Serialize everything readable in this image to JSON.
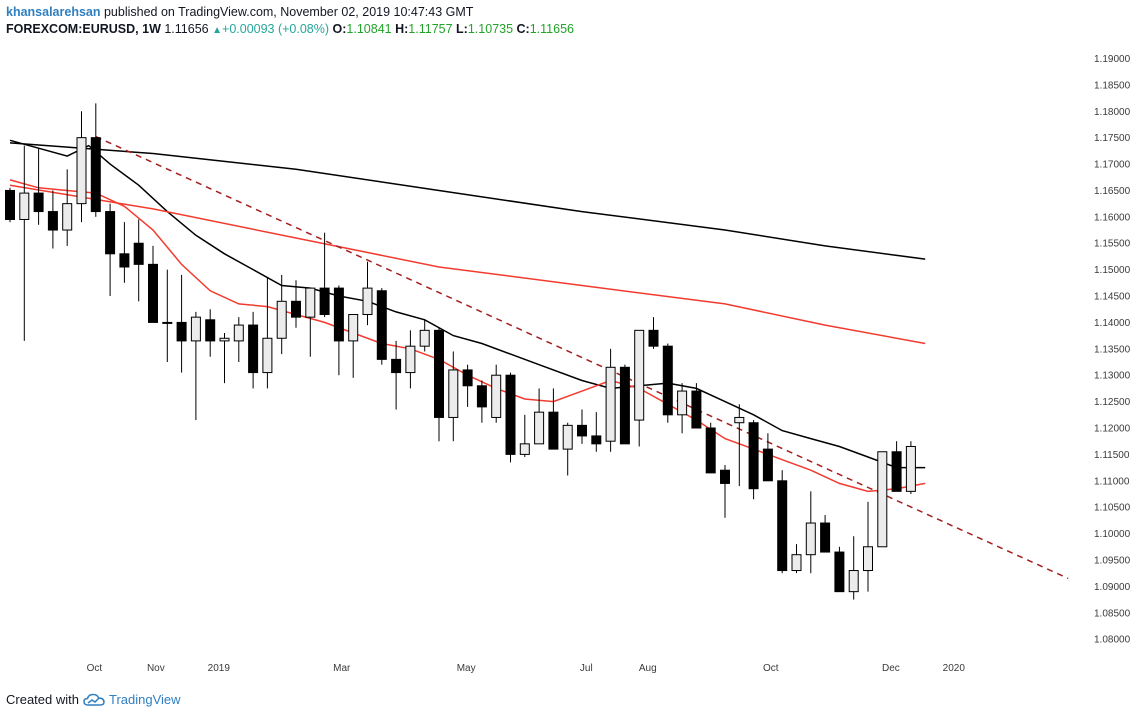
{
  "header": {
    "author": "khansalarehsan",
    "published_text": "published on TradingView.com, November 02, 2019 10:47:43 GMT",
    "symbol": "FOREXCOM:EURUSD, 1W",
    "last_price": "1.11656",
    "change_arrow": "▲",
    "change": "+0.00093 (+0.08%)",
    "o_label": "O:",
    "o_value": "1.10841",
    "h_label": "H:",
    "h_value": "1.11757",
    "l_label": "L:",
    "l_value": "1.10735",
    "c_label": "C:",
    "c_value": "1.11656"
  },
  "footer": {
    "created_with": "Created with",
    "brand": "TradingView",
    "logo_icon": "tradingview-cloud-icon"
  },
  "colors": {
    "bull_fill": "#ececec",
    "bear_fill": "#000000",
    "ma_black": "#000000",
    "ma_red": "#f23b2e",
    "trendline": "#a31f1f"
  },
  "chart_data": {
    "type": "candlestick",
    "title": "",
    "xlabel": "",
    "ylabel": "",
    "ylim": [
      1.077,
      1.1935
    ],
    "y_ticks": [
      "1.19000",
      "1.18500",
      "1.18000",
      "1.17500",
      "1.17000",
      "1.16500",
      "1.16000",
      "1.15500",
      "1.15000",
      "1.14500",
      "1.14000",
      "1.13500",
      "1.13000",
      "1.12500",
      "1.12000",
      "1.11500",
      "1.11000",
      "1.10500",
      "1.10000",
      "1.09500",
      "1.09000",
      "1.08500",
      "1.08000"
    ],
    "x_ticks": [
      {
        "label": "Oct",
        "week": 5.9
      },
      {
        "label": "Nov",
        "week": 10.2
      },
      {
        "label": "2019",
        "week": 14.6
      },
      {
        "label": "Mar",
        "week": 23.2
      },
      {
        "label": "May",
        "week": 31.9
      },
      {
        "label": "Jul",
        "week": 40.3
      },
      {
        "label": "Aug",
        "week": 44.6
      },
      {
        "label": "Oct",
        "week": 53.2
      },
      {
        "label": "Dec",
        "week": 61.6
      },
      {
        "label": "2020",
        "week": 66.0
      }
    ],
    "grid": false,
    "candles": [
      [
        1.165,
        1.159,
        1.1655,
        1.1595
      ],
      [
        1.1595,
        1.1365,
        1.1735,
        1.1645
      ],
      [
        1.1645,
        1.1585,
        1.173,
        1.161
      ],
      [
        1.161,
        1.154,
        1.165,
        1.1575
      ],
      [
        1.1575,
        1.1545,
        1.169,
        1.1625
      ],
      [
        1.1625,
        1.159,
        1.18,
        1.175
      ],
      [
        1.175,
        1.16,
        1.1815,
        1.161
      ],
      [
        1.161,
        1.145,
        1.1625,
        1.153
      ],
      [
        1.153,
        1.1475,
        1.159,
        1.1505
      ],
      [
        1.155,
        1.144,
        1.1595,
        1.151
      ],
      [
        1.151,
        1.142,
        1.1545,
        1.14
      ],
      [
        1.14,
        1.1325,
        1.15,
        1.14
      ],
      [
        1.14,
        1.1305,
        1.149,
        1.1365
      ],
      [
        1.1365,
        1.1215,
        1.142,
        1.141
      ],
      [
        1.1405,
        1.1335,
        1.1425,
        1.1365
      ],
      [
        1.1365,
        1.1285,
        1.138,
        1.137
      ],
      [
        1.1365,
        1.1325,
        1.141,
        1.1395
      ],
      [
        1.1395,
        1.1275,
        1.142,
        1.1305
      ],
      [
        1.1305,
        1.1275,
        1.1485,
        1.137
      ],
      [
        1.137,
        1.134,
        1.149,
        1.144
      ],
      [
        1.144,
        1.139,
        1.148,
        1.141
      ],
      [
        1.141,
        1.1335,
        1.1465,
        1.1465
      ],
      [
        1.1465,
        1.141,
        1.157,
        1.1415
      ],
      [
        1.1465,
        1.13,
        1.147,
        1.1365
      ],
      [
        1.1365,
        1.1295,
        1.1395,
        1.1415
      ],
      [
        1.1415,
        1.1395,
        1.1515,
        1.1465
      ],
      [
        1.146,
        1.132,
        1.1465,
        1.133
      ],
      [
        1.133,
        1.1235,
        1.1365,
        1.1305
      ],
      [
        1.1305,
        1.1275,
        1.1385,
        1.1355
      ],
      [
        1.1355,
        1.1345,
        1.1405,
        1.1385
      ],
      [
        1.1385,
        1.1175,
        1.139,
        1.122
      ],
      [
        1.122,
        1.1175,
        1.1345,
        1.131
      ],
      [
        1.131,
        1.124,
        1.132,
        1.128
      ],
      [
        1.128,
        1.121,
        1.129,
        1.124
      ],
      [
        1.122,
        1.121,
        1.132,
        1.13
      ],
      [
        1.13,
        1.1135,
        1.1305,
        1.115
      ],
      [
        1.115,
        1.1145,
        1.1225,
        1.117
      ],
      [
        1.117,
        1.119,
        1.1275,
        1.123
      ],
      [
        1.123,
        1.12,
        1.1275,
        1.116
      ],
      [
        1.116,
        1.111,
        1.121,
        1.1205
      ],
      [
        1.1205,
        1.117,
        1.1235,
        1.1185
      ],
      [
        1.1185,
        1.1155,
        1.123,
        1.117
      ],
      [
        1.1175,
        1.1155,
        1.135,
        1.1315
      ],
      [
        1.1315,
        1.1215,
        1.132,
        1.117
      ],
      [
        1.1215,
        1.1165,
        1.1385,
        1.1385
      ],
      [
        1.1385,
        1.135,
        1.141,
        1.1355
      ],
      [
        1.1355,
        1.121,
        1.136,
        1.1225
      ],
      [
        1.1225,
        1.119,
        1.1285,
        1.127
      ],
      [
        1.127,
        1.124,
        1.1285,
        1.12
      ],
      [
        1.12,
        1.1155,
        1.121,
        1.1115
      ],
      [
        1.112,
        1.103,
        1.113,
        1.1095
      ],
      [
        1.121,
        1.109,
        1.1245,
        1.122
      ],
      [
        1.121,
        1.1065,
        1.1215,
        1.1085
      ],
      [
        1.116,
        1.116,
        1.119,
        1.11
      ],
      [
        1.11,
        1.0925,
        1.112,
        1.093
      ],
      [
        1.093,
        1.0925,
        1.098,
        1.096
      ],
      [
        1.096,
        1.0925,
        1.108,
        1.102
      ],
      [
        1.102,
        1.098,
        1.1035,
        1.0965
      ],
      [
        1.0965,
        1.0905,
        1.0975,
        1.089
      ],
      [
        1.089,
        1.0875,
        1.0995,
        1.093
      ],
      [
        1.093,
        1.089,
        1.106,
        1.0975
      ],
      [
        1.0975,
        1.099,
        1.1155,
        1.1155
      ],
      [
        1.1155,
        1.1085,
        1.1175,
        1.108
      ],
      [
        1.108,
        1.1075,
        1.1175,
        1.1165
      ]
    ],
    "series": [
      {
        "type": "line",
        "color": "#000000",
        "points": [
          [
            0,
            1.1745
          ],
          [
            2,
            1.173
          ],
          [
            4,
            1.1715
          ],
          [
            5.5,
            1.1735
          ],
          [
            7,
            1.17
          ],
          [
            9,
            1.166
          ],
          [
            11,
            1.161
          ],
          [
            13,
            1.1565
          ],
          [
            15,
            1.153
          ],
          [
            17,
            1.15
          ],
          [
            19,
            1.147
          ],
          [
            21,
            1.1465
          ],
          [
            23,
            1.145
          ],
          [
            25,
            1.144
          ],
          [
            27,
            1.142
          ],
          [
            29,
            1.1405
          ],
          [
            31,
            1.1375
          ],
          [
            33,
            1.136
          ],
          [
            35,
            1.134
          ],
          [
            37,
            1.132
          ],
          [
            40,
            1.129
          ],
          [
            42,
            1.1275
          ],
          [
            44,
            1.128
          ],
          [
            46,
            1.1285
          ],
          [
            48,
            1.1275
          ],
          [
            50,
            1.125
          ],
          [
            52,
            1.1225
          ],
          [
            54,
            1.1195
          ],
          [
            56,
            1.118
          ],
          [
            58,
            1.1165
          ],
          [
            60,
            1.1145
          ],
          [
            62,
            1.1125
          ],
          [
            64,
            1.1125
          ]
        ]
      },
      {
        "type": "line",
        "color": "#f23b2e",
        "points": [
          [
            0,
            1.167
          ],
          [
            2,
            1.1655
          ],
          [
            4,
            1.165
          ],
          [
            6,
            1.1645
          ],
          [
            8,
            1.162
          ],
          [
            10,
            1.1575
          ],
          [
            12,
            1.151
          ],
          [
            14,
            1.146
          ],
          [
            16,
            1.1435
          ],
          [
            18,
            1.143
          ],
          [
            20,
            1.1415
          ],
          [
            22,
            1.14
          ],
          [
            24,
            1.138
          ],
          [
            26,
            1.136
          ],
          [
            28,
            1.135
          ],
          [
            30,
            1.133
          ],
          [
            32,
            1.13
          ],
          [
            34,
            1.1275
          ],
          [
            36,
            1.1255
          ],
          [
            38,
            1.125
          ],
          [
            40,
            1.127
          ],
          [
            42,
            1.129
          ],
          [
            44,
            1.1275
          ],
          [
            46,
            1.1245
          ],
          [
            48,
            1.1215
          ],
          [
            50,
            1.118
          ],
          [
            52,
            1.116
          ],
          [
            54,
            1.114
          ],
          [
            56,
            1.112
          ],
          [
            58,
            1.1095
          ],
          [
            60,
            1.108
          ],
          [
            62,
            1.1085
          ],
          [
            64,
            1.1095
          ]
        ]
      },
      {
        "type": "line",
        "color": "#000000",
        "points": [
          [
            0,
            1.174
          ],
          [
            10,
            1.172
          ],
          [
            20,
            1.169
          ],
          [
            30,
            1.165
          ],
          [
            40,
            1.161
          ],
          [
            50,
            1.1575
          ],
          [
            57,
            1.1545
          ],
          [
            64,
            1.152
          ]
        ]
      },
      {
        "type": "line",
        "color": "#f23b2e",
        "points": [
          [
            0,
            1.166
          ],
          [
            10,
            1.1615
          ],
          [
            20,
            1.156
          ],
          [
            30,
            1.1505
          ],
          [
            40,
            1.147
          ],
          [
            50,
            1.1435
          ],
          [
            57,
            1.1395
          ],
          [
            64,
            1.136
          ]
        ]
      }
    ],
    "trendline": {
      "from": [
        6,
        1.1752
      ],
      "to": [
        74,
        1.0915
      ],
      "style": "dashed",
      "color": "#a31f1f"
    }
  }
}
